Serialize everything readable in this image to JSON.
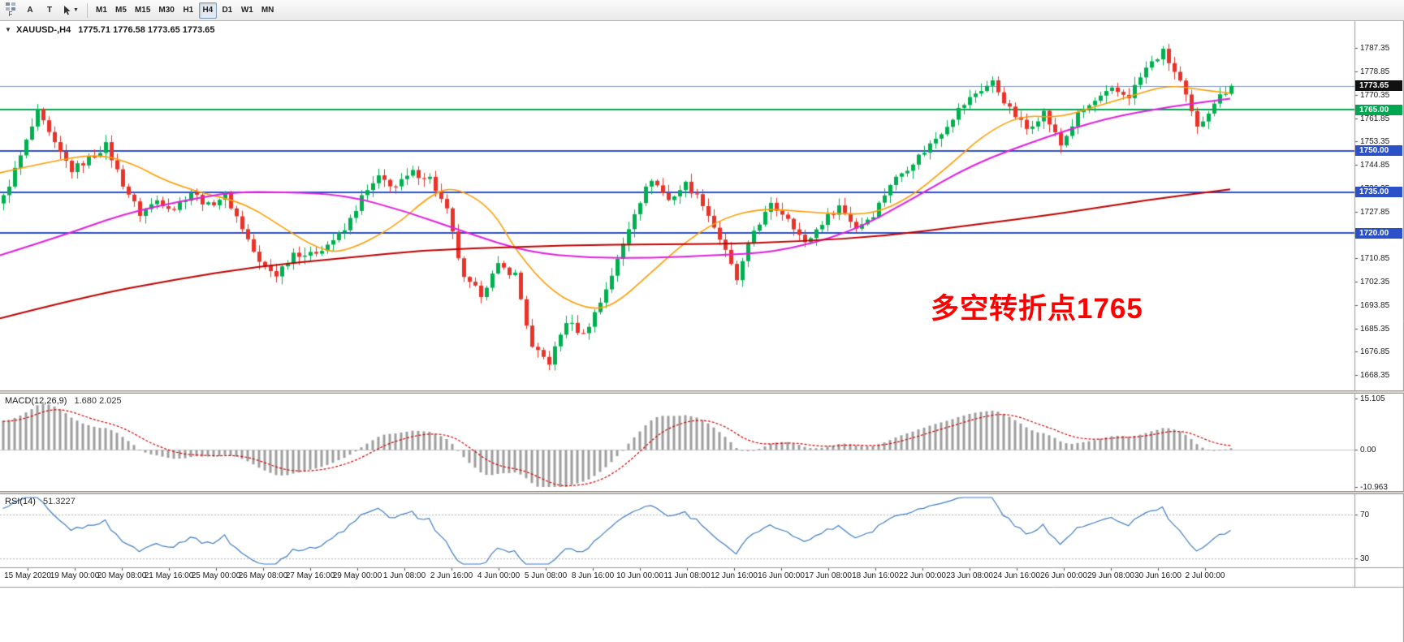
{
  "toolbar": {
    "f_label": "F",
    "arrow_label": "A",
    "text_label": "T",
    "timeframes": [
      "M1",
      "M5",
      "M15",
      "M30",
      "H1",
      "H4",
      "D1",
      "W1",
      "MN"
    ],
    "active_timeframe": "H4"
  },
  "chart": {
    "header": {
      "dropdown_glyph": "▼",
      "symbol": "XAUUSD-,H4",
      "ohlc": "1775.71 1776.58 1773.65 1773.65"
    },
    "annotation": {
      "text": "多空转折点1765",
      "color": "#FF0000"
    },
    "bid_price": 1773.65,
    "price_scale": {
      "ticks": [
        "1787.35",
        "1778.85",
        "1770.35",
        "1761.85",
        "1753.35",
        "1744.85",
        "1736.35",
        "1727.85",
        "1719.35",
        "1710.85",
        "1702.35",
        "1693.85",
        "1685.35",
        "1676.85",
        "1668.35"
      ],
      "badges": [
        {
          "name": "bid-price-badge",
          "label": "1773.65",
          "price": 1773.65,
          "bg": "#111111"
        },
        {
          "name": "hline-1765-badge",
          "label": "1765.00",
          "price": 1765,
          "bg": "#00A650"
        },
        {
          "name": "hline-1750-badge",
          "label": "1750.00",
          "price": 1750,
          "bg": "#2C50C8"
        },
        {
          "name": "hline-1735-badge",
          "label": "1735.00",
          "price": 1735,
          "bg": "#2C50C8"
        },
        {
          "name": "hline-1720-badge",
          "label": "1720.00",
          "price": 1720,
          "bg": "#2C50C8"
        }
      ]
    },
    "hlines": [
      {
        "price": 1765,
        "color": "#00A650",
        "width": 2
      },
      {
        "price": 1750,
        "color": "#2C50C8",
        "width": 2
      },
      {
        "price": 1735,
        "color": "#2C50C8",
        "width": 2
      },
      {
        "price": 1720,
        "color": "#2C50C8",
        "width": 2
      }
    ]
  },
  "panes": {
    "macd": {
      "label": "MACD(12,26,9)",
      "values": "1.680 2.025",
      "axis": [
        "15.105",
        "0.00",
        "-10.963"
      ],
      "range": [
        -10.963,
        15.105
      ]
    },
    "rsi": {
      "label": "RSI(14)",
      "value": "51.3227",
      "levels": [
        "70",
        "30"
      ],
      "level_values": [
        70,
        30
      ],
      "range": [
        25,
        85
      ]
    }
  },
  "time_axis": {
    "labels": [
      "15 May 2020",
      "19 May 00:00",
      "20 May 08:00",
      "21 May 16:00",
      "25 May 00:00",
      "26 May 08:00",
      "27 May 16:00",
      "29 May 00:00",
      "1 Jun 08:00",
      "2 Jun 16:00",
      "4 Jun 00:00",
      "5 Jun 08:00",
      "8 Jun 16:00",
      "10 Jun 00:00",
      "11 Jun 08:00",
      "12 Jun 16:00",
      "16 Jun 00:00",
      "17 Jun 08:00",
      "18 Jun 16:00",
      "22 Jun 00:00",
      "23 Jun 08:00",
      "24 Jun 16:00",
      "26 Jun 00:00",
      "29 Jun 08:00",
      "30 Jun 16:00",
      "2 Jul 00:00"
    ]
  },
  "chart_data": {
    "type": "candlestick",
    "symbol": "XAUUSD",
    "timeframe": "H4",
    "title": "XAUUSD-,H4",
    "visible_price_range": [
      1668.35,
      1787.35
    ],
    "last_price": 1773.65,
    "current_bar": {
      "open": 1775.71,
      "high": 1776.58,
      "low": 1773.65,
      "close": 1773.65
    },
    "candles_per_anchor": 3,
    "anchor_closes": [
      1733,
      1748,
      1764,
      1752,
      1743,
      1747,
      1752,
      1738,
      1727,
      1732,
      1729,
      1735,
      1730,
      1734,
      1722,
      1709,
      1705,
      1713,
      1712,
      1716,
      1721,
      1733,
      1740,
      1737,
      1742,
      1740,
      1728,
      1703,
      1698,
      1708,
      1705,
      1678,
      1673,
      1688,
      1683,
      1695,
      1710,
      1728,
      1740,
      1732,
      1738,
      1731,
      1718,
      1703,
      1721,
      1730,
      1726,
      1716,
      1724,
      1730,
      1722,
      1727,
      1738,
      1744,
      1750,
      1757,
      1765,
      1771,
      1775,
      1765,
      1758,
      1764,
      1752,
      1763,
      1768,
      1772,
      1770,
      1780,
      1786,
      1775,
      1758,
      1768,
      1773.65
    ],
    "warmup": {
      "start": 1680,
      "end": 1733,
      "count": 40
    },
    "colors": {
      "up": "#00B050",
      "down": "#E8332A",
      "macd_hist": "#9E9E9E",
      "macd_signal": "#D40000",
      "rsi": "#3F7CC4",
      "bid_line": "#7D96C0"
    },
    "horizontal_levels": [
      1765,
      1750,
      1735,
      1720
    ],
    "moving_averages": [
      {
        "name": "fast-ma",
        "color": "#FF9C00",
        "width": 1.6,
        "points": [
          [
            0,
            1742
          ],
          [
            0.04,
            1746
          ],
          [
            0.08,
            1749
          ],
          [
            0.11,
            1745
          ],
          [
            0.13,
            1740
          ],
          [
            0.16,
            1735
          ],
          [
            0.19,
            1732
          ],
          [
            0.21,
            1728
          ],
          [
            0.23,
            1722
          ],
          [
            0.26,
            1714
          ],
          [
            0.28,
            1713
          ],
          [
            0.32,
            1722
          ],
          [
            0.35,
            1734
          ],
          [
            0.37,
            1737
          ],
          [
            0.4,
            1729
          ],
          [
            0.42,
            1713
          ],
          [
            0.45,
            1698
          ],
          [
            0.48,
            1692
          ],
          [
            0.5,
            1694
          ],
          [
            0.53,
            1706
          ],
          [
            0.56,
            1718
          ],
          [
            0.59,
            1726
          ],
          [
            0.62,
            1729
          ],
          [
            0.65,
            1728
          ],
          [
            0.68,
            1727
          ],
          [
            0.71,
            1727
          ],
          [
            0.74,
            1733
          ],
          [
            0.77,
            1744
          ],
          [
            0.8,
            1756
          ],
          [
            0.83,
            1763
          ],
          [
            0.86,
            1762
          ],
          [
            0.89,
            1766
          ],
          [
            0.92,
            1770
          ],
          [
            0.95,
            1774
          ],
          [
            0.98,
            1772
          ],
          [
            1,
            1771
          ]
        ]
      },
      {
        "name": "mid-ma",
        "color": "#E020E0",
        "width": 2,
        "points": [
          [
            0,
            1712
          ],
          [
            0.05,
            1719
          ],
          [
            0.1,
            1727
          ],
          [
            0.15,
            1732
          ],
          [
            0.19,
            1735
          ],
          [
            0.23,
            1735
          ],
          [
            0.28,
            1734
          ],
          [
            0.33,
            1728
          ],
          [
            0.38,
            1720
          ],
          [
            0.43,
            1713
          ],
          [
            0.48,
            1711
          ],
          [
            0.53,
            1711
          ],
          [
            0.58,
            1712
          ],
          [
            0.63,
            1713
          ],
          [
            0.69,
            1720
          ],
          [
            0.74,
            1732
          ],
          [
            0.79,
            1745
          ],
          [
            0.85,
            1755
          ],
          [
            0.9,
            1762
          ],
          [
            0.95,
            1766
          ],
          [
            1,
            1769
          ]
        ]
      },
      {
        "name": "slow-ma",
        "color": "#C00000",
        "width": 2,
        "points": [
          [
            0,
            1689
          ],
          [
            0.07,
            1697
          ],
          [
            0.14,
            1703
          ],
          [
            0.21,
            1708
          ],
          [
            0.28,
            1711
          ],
          [
            0.35,
            1714
          ],
          [
            0.42,
            1715
          ],
          [
            0.5,
            1716
          ],
          [
            0.58,
            1716
          ],
          [
            0.65,
            1717
          ],
          [
            0.72,
            1719
          ],
          [
            0.79,
            1723
          ],
          [
            0.86,
            1727
          ],
          [
            0.93,
            1732
          ],
          [
            1,
            1736
          ]
        ]
      }
    ],
    "indicators": [
      {
        "name": "MACD",
        "params": [
          12,
          26,
          9
        ],
        "current_values": [
          1.68,
          2.025
        ],
        "axis_range": [
          -10.963,
          15.105
        ]
      },
      {
        "name": "RSI",
        "params": [
          14
        ],
        "current_value": 51.3227,
        "levels": [
          70,
          30
        ]
      }
    ]
  }
}
